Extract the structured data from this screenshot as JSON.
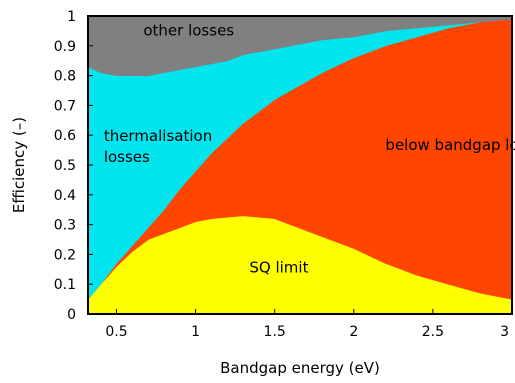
{
  "chart_data": {
    "type": "area",
    "title": "",
    "xlabel": "Bandgap energy (eV)",
    "ylabel": "Efficiency (–)",
    "xlim": [
      0.32,
      3.0
    ],
    "ylim": [
      0,
      1
    ],
    "grid": false,
    "legend": "none",
    "x_ticks": [
      "0.5",
      "1",
      "1.5",
      "2",
      "2.5",
      "3"
    ],
    "x_tick_values": [
      0.5,
      1,
      1.5,
      2,
      2.5,
      3
    ],
    "y_ticks": [
      "0",
      "0.1",
      "0.2",
      "0.3",
      "0.4",
      "0.5",
      "0.6",
      "0.7",
      "0.8",
      "0.9",
      "1"
    ],
    "y_tick_values": [
      0,
      0.1,
      0.2,
      0.3,
      0.4,
      0.5,
      0.6,
      0.7,
      0.8,
      0.9,
      1
    ],
    "x": [
      0.32,
      0.4,
      0.5,
      0.6,
      0.7,
      0.8,
      0.9,
      1.0,
      1.1,
      1.2,
      1.3,
      1.4,
      1.5,
      1.6,
      1.8,
      2.0,
      2.2,
      2.4,
      2.6,
      2.8,
      3.0
    ],
    "regions": [
      {
        "label": "SQ limit",
        "color": "#ffff00",
        "upper": [
          0.05,
          0.1,
          0.16,
          0.21,
          0.25,
          0.27,
          0.29,
          0.31,
          0.32,
          0.325,
          0.33,
          0.325,
          0.32,
          0.3,
          0.26,
          0.22,
          0.17,
          0.13,
          0.1,
          0.07,
          0.05
        ]
      },
      {
        "label": "below bandgap losses",
        "color": "#ff4500",
        "upper": [
          0.05,
          0.1,
          0.17,
          0.23,
          0.29,
          0.35,
          0.42,
          0.48,
          0.54,
          0.59,
          0.64,
          0.68,
          0.72,
          0.75,
          0.81,
          0.86,
          0.9,
          0.93,
          0.96,
          0.98,
          0.99
        ]
      },
      {
        "label": "thermalisation losses",
        "label_lines": [
          "thermalisation",
          "losses"
        ],
        "color": "#00e5ee",
        "upper": [
          0.83,
          0.81,
          0.8,
          0.8,
          0.8,
          0.81,
          0.82,
          0.83,
          0.84,
          0.85,
          0.87,
          0.88,
          0.89,
          0.9,
          0.92,
          0.93,
          0.95,
          0.96,
          0.97,
          0.98,
          0.99
        ]
      },
      {
        "label": "other losses",
        "color": "#808080",
        "upper": [
          1,
          1,
          1,
          1,
          1,
          1,
          1,
          1,
          1,
          1,
          1,
          1,
          1,
          1,
          1,
          1,
          1,
          1,
          1,
          1,
          1
        ]
      }
    ],
    "region_label_positions": [
      {
        "label": "other losses",
        "x": 0.67,
        "y": 0.935
      },
      {
        "label": "thermalisation losses",
        "x": 0.42,
        "y": 0.58
      },
      {
        "label": "below bandgap losses",
        "x": 2.2,
        "y": 0.55
      },
      {
        "label": "SQ limit",
        "x": 1.34,
        "y": 0.14
      }
    ]
  }
}
